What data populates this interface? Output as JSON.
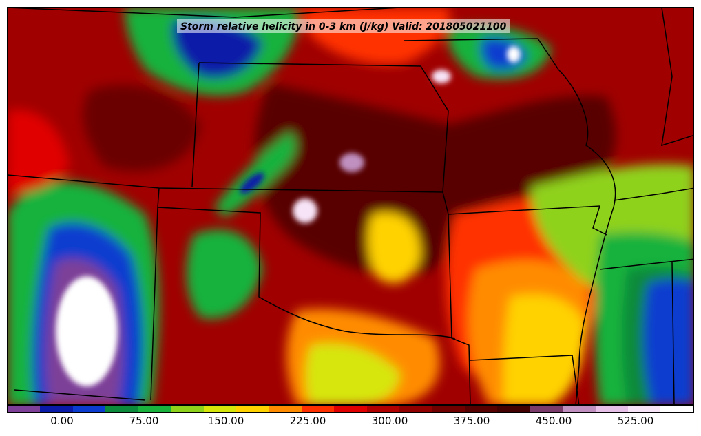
{
  "title": "Storm relative helicity in 0-3 km (J/kg) Valid: 201805021100",
  "colorbar": {
    "colors": [
      "#7d3f98",
      "#0a1aa8",
      "#0a3ccf",
      "#0a8a3a",
      "#19b23c",
      "#8fd21c",
      "#d7e60a",
      "#ffd200",
      "#ff8c00",
      "#ff3000",
      "#e00000",
      "#b00000",
      "#900000",
      "#700000",
      "#560000",
      "#420000",
      "#7a3a6a",
      "#c090c0",
      "#e6c0e6",
      "#f7e4f7",
      "#ffffff"
    ],
    "tick_labels": [
      "0.00",
      "75.00",
      "150.00",
      "225.00",
      "300.00",
      "375.00",
      "450.00",
      "525.00"
    ]
  }
}
